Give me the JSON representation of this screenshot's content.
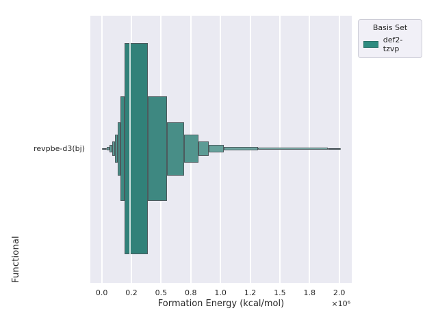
{
  "figure": {
    "background": "#ffffff"
  },
  "plot": {
    "background": "#eaeaf2",
    "grid_color": "#ffffff"
  },
  "y_axis": {
    "label": "Functional",
    "tick_label": "revpbe-d3(bj)"
  },
  "x_axis": {
    "label": "Formation Energy (kcal/mol)",
    "offset_text": "×10⁶",
    "ticks": [
      {
        "value": 0.0,
        "label": "0.0"
      },
      {
        "value": 0.25,
        "label": "0.2"
      },
      {
        "value": 0.5,
        "label": "0.5"
      },
      {
        "value": 0.75,
        "label": "0.8"
      },
      {
        "value": 1.0,
        "label": "1.0"
      },
      {
        "value": 1.25,
        "label": "1.2"
      },
      {
        "value": 1.5,
        "label": "1.5"
      },
      {
        "value": 1.75,
        "label": "1.8"
      },
      {
        "value": 2.0,
        "label": "2.0"
      }
    ]
  },
  "legend": {
    "title": "Basis Set",
    "entries": [
      {
        "label": "def2-tzvp",
        "color": "#2e8b80"
      }
    ]
  },
  "chart_data": {
    "type": "boxen",
    "orientation": "horizontal",
    "title": "",
    "xlabel": "Formation Energy (kcal/mol)",
    "ylabel": "Functional",
    "categories": [
      "revpbe-d3(bj)"
    ],
    "series": [
      {
        "name": "def2-tzvp",
        "color": "#2e8b80"
      }
    ],
    "x_unit_multiplier": 1000000,
    "xlim": [
      -0.096,
      2.106
    ],
    "grid": "x-only",
    "legend_position": "upper-right-outside",
    "median": 0.237,
    "boxes": [
      {
        "lo": 0.193,
        "hi": 0.386,
        "h": 1.0,
        "color": "#318179"
      },
      {
        "lo": 0.16,
        "hi": 0.193,
        "h": 0.498,
        "color": "#3e8881"
      },
      {
        "lo": 0.386,
        "hi": 0.55,
        "h": 0.498,
        "color": "#3e8881"
      },
      {
        "lo": 0.135,
        "hi": 0.16,
        "h": 0.253,
        "color": "#488e87"
      },
      {
        "lo": 0.55,
        "hi": 0.692,
        "h": 0.253,
        "color": "#488e87"
      },
      {
        "lo": 0.11,
        "hi": 0.135,
        "h": 0.13,
        "color": "#52958e"
      },
      {
        "lo": 0.692,
        "hi": 0.813,
        "h": 0.13,
        "color": "#52958e"
      },
      {
        "lo": 0.087,
        "hi": 0.11,
        "h": 0.068,
        "color": "#5c9b95"
      },
      {
        "lo": 0.813,
        "hi": 0.902,
        "h": 0.068,
        "color": "#5c9b95"
      },
      {
        "lo": 0.063,
        "hi": 0.087,
        "h": 0.034,
        "color": "#66a19b"
      },
      {
        "lo": 0.902,
        "hi": 1.029,
        "h": 0.034,
        "color": "#66a19b"
      },
      {
        "lo": 0.044,
        "hi": 0.063,
        "h": 0.019,
        "color": "#6fa6a1"
      },
      {
        "lo": 1.029,
        "hi": 1.318,
        "h": 0.019,
        "color": "#6fa6a1"
      },
      {
        "lo": 1.318,
        "hi": 1.904,
        "h": 0.012,
        "color": "#79aca6"
      }
    ],
    "whiskers": [
      {
        "from": 0.004,
        "to": 0.044
      },
      {
        "from": 1.904,
        "to": 2.016
      }
    ],
    "edge_color": "#4c5a5d",
    "whisker_color": "#39464a",
    "median_color": "rgba(228,238,236,0.9)",
    "center_frac": 0.4975,
    "max_half_frac": 0.3943
  }
}
